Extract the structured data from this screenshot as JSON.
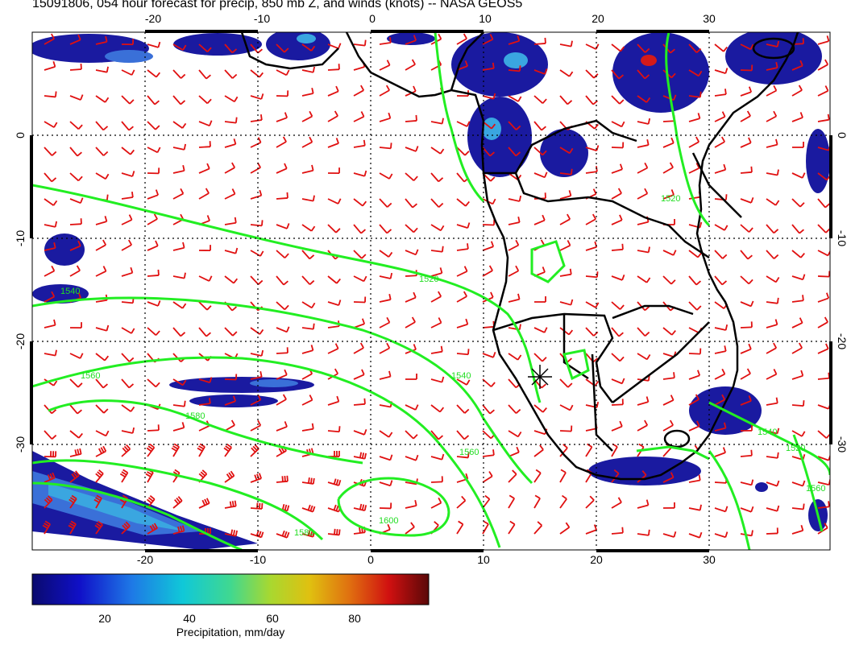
{
  "title": "15091806, 054 hour forecast for precip, 850 mb Z, and winds (knots) -- NASA GEOS5",
  "map": {
    "lon_range": [
      -30,
      40
    ],
    "lat_range": [
      -40,
      10
    ],
    "lon_ticks": [
      "-20",
      "-10",
      "0",
      "10",
      "20",
      "30"
    ],
    "lat_ticks": [
      "0",
      "-10",
      "-20",
      "-30"
    ],
    "contour_labels": [
      "1520",
      "1540",
      "1560",
      "1580",
      "1600"
    ],
    "colors": {
      "precip_dark": "#1a1aa0",
      "precip_core": "#3aa6e0",
      "precip_max": "#d41a1a",
      "wind_barb": "#e01010",
      "geopotential_contour": "#22ee22",
      "coastline": "#000000"
    }
  },
  "colorbar": {
    "label": "Precipitation, mm/day",
    "ticks": [
      "20",
      "40",
      "60",
      "80"
    ],
    "range": [
      0,
      100
    ]
  }
}
